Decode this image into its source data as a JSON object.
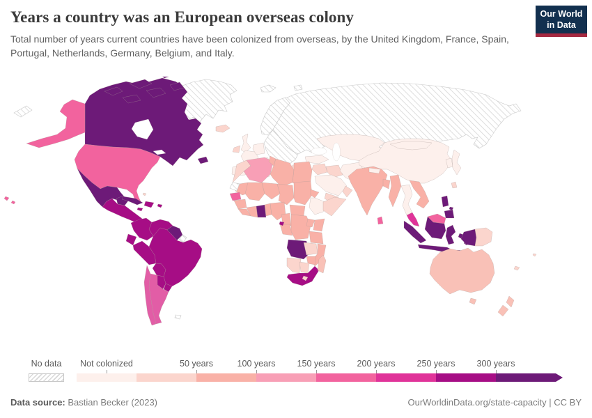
{
  "header": {
    "title": "Years a country was an European overseas colony",
    "subtitle": "Total number of years current countries have been colonized from overseas, by the United Kingdom, France, Spain, Portugal, Netherlands, Germany, Belgium, and Italy.",
    "logo": {
      "line1": "Our World",
      "line2": "in Data",
      "bg_color": "#12304f",
      "accent_color": "#a52840"
    }
  },
  "chart_data": {
    "type": "choropleth-map",
    "title": "Years a country was an European overseas colony",
    "unit": "years colonized",
    "colonizers": [
      "United Kingdom",
      "France",
      "Spain",
      "Portugal",
      "Netherlands",
      "Germany",
      "Belgium",
      "Italy"
    ],
    "legend": {
      "no_data_label": "No data",
      "first_segment_label": "Not colonized",
      "boundary_labels": [
        "50 years",
        "100 years",
        "150 years",
        "200 years",
        "250 years",
        "300 years"
      ],
      "bins": [
        {
          "key": "b0",
          "range": "Not colonized",
          "color": "#fdf0ec"
        },
        {
          "key": "b1",
          "range": "0-50 years",
          "color": "#fbd5cd"
        },
        {
          "key": "b2",
          "range": "50-100 years",
          "color": "#f9b1a7"
        },
        {
          "key": "b3",
          "range": "100-150 years",
          "color": "#f89fb6"
        },
        {
          "key": "b4",
          "range": "150-200 years",
          "color": "#f2639e"
        },
        {
          "key": "b5",
          "range": "200-250 years",
          "color": "#e03399"
        },
        {
          "key": "b6",
          "range": "250-300 years",
          "color": "#a60d85"
        },
        {
          "key": "b7",
          "range": "300+ years",
          "color": "#6d1a78"
        }
      ],
      "extra_colors": {
        "light_salmon": "#f9c1b7",
        "medium_rose": "#e25da6"
      },
      "no_data_pattern": {
        "stripe_color": "#d8d8d8",
        "bg": "#ffffff"
      }
    },
    "regions": {
      "greenland": "no_data",
      "svalbard": "no_data",
      "franz_josef": "no_data",
      "novaya_zemlya": "no_data",
      "chukotka_west": "no_data",
      "scandinavia": "no_data",
      "russia": "no_data",
      "east_europe": "no_data",
      "western_sahara": "no_data",
      "french_guiana": "no_data",
      "falkland_islands": "no_data",
      "canada": "b7",
      "canada_arctic": "b7",
      "newfoundland": "b7",
      "mexico": "b7",
      "yucatan": "b7",
      "cuba": "b7",
      "guyana_suriname": "b7",
      "ghana": "b7",
      "angola": "b7",
      "sumatra": "b7",
      "java": "b7",
      "kalimantan": "b7",
      "sulawesi": "b7",
      "lesser_sunda": "b7",
      "moluccas": "b7",
      "west_papua": "b7",
      "philippines": "b7",
      "central_america": "b6",
      "hispaniola": "b6",
      "jamaica": "b6",
      "puerto_rico": "b6",
      "colombia": "b6",
      "venezuela": "b6",
      "ecuador": "b6",
      "peru": "b6",
      "brazil": "b6",
      "bolivia": "b6",
      "paraguay": "b6",
      "uruguay": "b6",
      "south_africa": "b6",
      "equatorial_guinea": "b6",
      "malaysia_peninsula": "b5",
      "united_states": "b4",
      "alaska": "b4",
      "hawaii": "b4",
      "senegal": "b4",
      "sri_lanka": "b4",
      "malaysia_borneo": "b4",
      "algeria": "b3",
      "tunisia": "b2",
      "libya": "b2",
      "egypt": "b2",
      "mauritania": "b2",
      "mali": "b2",
      "niger": "b2",
      "chad": "b2",
      "sudan": "b2",
      "eritrea": "b2",
      "guinea": "b2",
      "sierra_leone_liberia": "b2",
      "ivory_coast": "b2",
      "togo_benin": "b2",
      "nigeria": "b2",
      "cameroon": "b2",
      "central_african_republic": "b2",
      "gabon_congo": "b2",
      "drc": "b2",
      "uganda": "b2",
      "kenya": "b2",
      "tanzania": "b2",
      "mozambique": "b2",
      "zimbabwe": "b2",
      "pakistan": "b2",
      "india": "b2",
      "bangladesh": "b2",
      "myanmar": "b2",
      "indochina": "b2",
      "morocco": "b1",
      "somalia": "b1",
      "zambia": "b1",
      "namibia": "b1",
      "botswana": "b1",
      "lesotho": "b1",
      "iceland": "b1",
      "ireland": "b1",
      "greece": "b1",
      "bahamas": "b1",
      "papua_new_guinea": "b1",
      "taiwan": "b1",
      "levant": "b1",
      "iraq": "b1",
      "yemen": "b1",
      "oman": "b1",
      "fiji": "b1",
      "new_caledonia": "b1",
      "united_kingdom": "b0",
      "france": "b0",
      "spain": "b0",
      "portugal": "b0",
      "germany": "b0",
      "italy": "b0",
      "sicily": "b0",
      "turkey": "b0",
      "central_asia": "b0",
      "china": "b0",
      "mongolia": "b0",
      "south_korea": "b0",
      "japan": "b0",
      "afghanistan": "b0",
      "iran": "b0",
      "saudi_arabia": "b0",
      "ethiopia": "b0",
      "nepal": "b0",
      "thailand": "b0",
      "australia": "light_salmon",
      "tasmania": "light_salmon",
      "new_zealand": "light_salmon",
      "madagascar": "light_salmon",
      "argentina": "medium_rose",
      "chile": "medium_rose"
    }
  },
  "footer": {
    "source_label": "Data source:",
    "source_value": "Bastian Becker (2023)",
    "link": "OurWorldinData.org/state-capacity | CC BY"
  }
}
